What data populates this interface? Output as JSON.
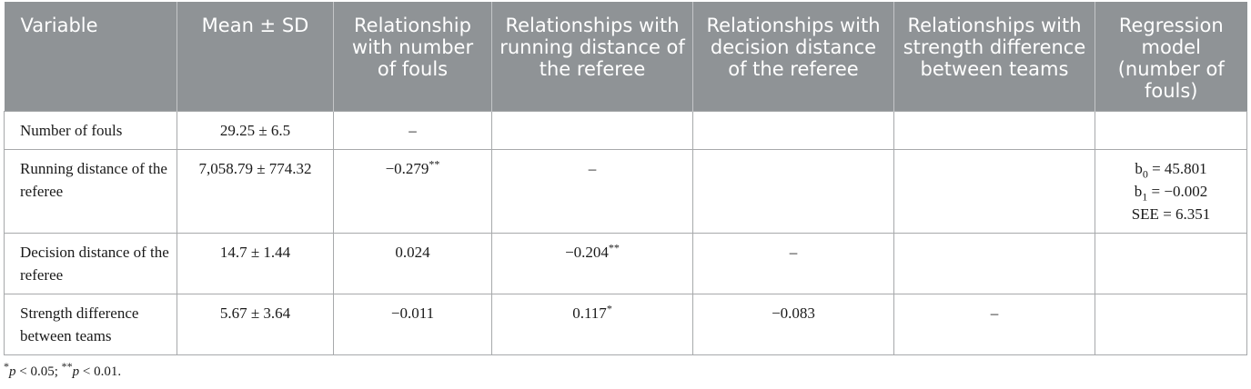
{
  "table": {
    "headers": [
      "Variable",
      "Mean ± SD",
      "Relationship with number of fouls",
      "Relationships with running distance of the referee",
      "Relationships with decision distance of the referee",
      "Relationships with strength difference between teams",
      "Regression model (number of fouls)"
    ],
    "rows": [
      {
        "variable": "Number of fouls",
        "mean_sd": "29.25 ± 6.5",
        "rel_fouls": "–",
        "rel_running": "",
        "rel_decision": "",
        "rel_strength": "",
        "regression": []
      },
      {
        "variable": "Running distance of the referee",
        "mean_sd": "7,058.79 ± 774.32",
        "rel_fouls": "−0.279",
        "rel_fouls_sig": "**",
        "rel_running": "–",
        "rel_decision": "",
        "rel_strength": "",
        "regression": [
          {
            "base": "b",
            "sub": "0",
            "rest": " = 45.801"
          },
          {
            "base": "b",
            "sub": "1",
            "rest": " = −0.002"
          },
          {
            "base": "SEE",
            "sub": "",
            "rest": " = 6.351"
          }
        ]
      },
      {
        "variable": "Decision distance of the referee",
        "mean_sd": "14.7 ± 1.44",
        "rel_fouls": "0.024",
        "rel_running": "−0.204",
        "rel_running_sig": "**",
        "rel_decision": "–",
        "rel_strength": "",
        "regression": []
      },
      {
        "variable": "Strength difference between teams",
        "mean_sd": "5.67 ± 3.64",
        "rel_fouls": "−0.011",
        "rel_running": "0.117",
        "rel_running_sig": "*",
        "rel_decision": "−0.083",
        "rel_strength": "–",
        "regression": []
      }
    ]
  },
  "note": {
    "star1": "*",
    "p1": "p",
    "cond1": " < 0.05; ",
    "star2": "**",
    "p2": "p",
    "cond2": " < 0.01."
  }
}
